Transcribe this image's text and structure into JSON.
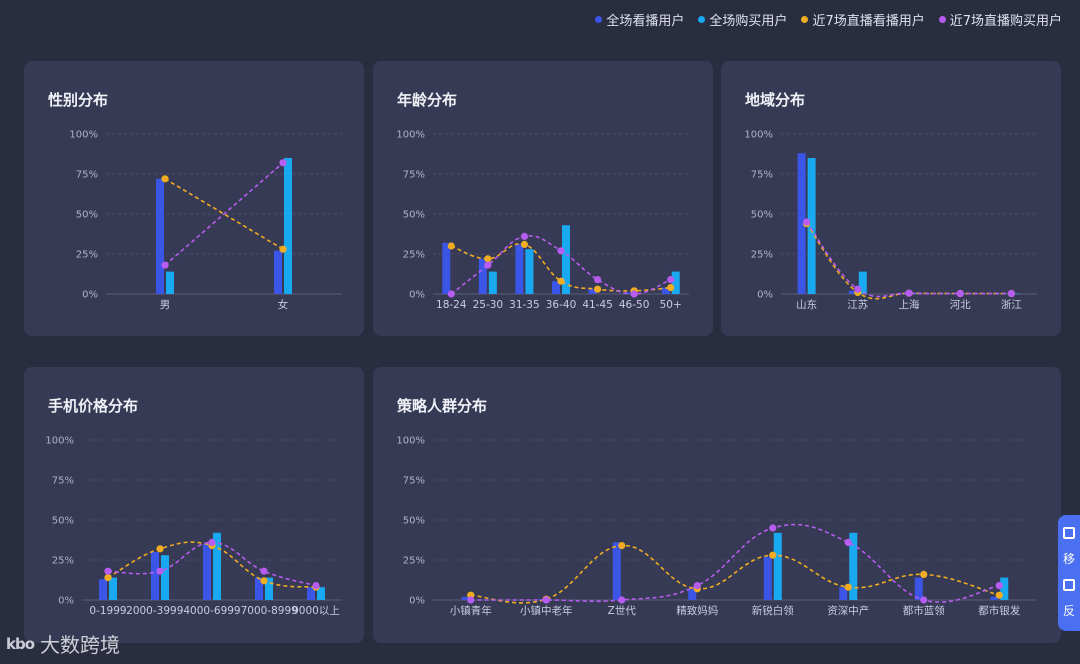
{
  "legend": [
    {
      "label": "全场看播用户",
      "color": "#3b55e6"
    },
    {
      "label": "全场购买用户",
      "color": "#19a9f0"
    },
    {
      "label": "近7场直播看播用户",
      "color": "#f0ad22"
    },
    {
      "label": "近7场直播购买用户",
      "color": "#b75cf0"
    }
  ],
  "side_widget": {
    "label1": "移",
    "label2": "反"
  },
  "watermark": {
    "logo": "kbo",
    "text": "大数跨境"
  },
  "chart_data": [
    {
      "id": "gender",
      "type": "bar",
      "title": "性别分布",
      "yticks": [
        "100%",
        "75%",
        "50%",
        "25%",
        "0%"
      ],
      "ylim": [
        0,
        100
      ],
      "categories": [
        "男",
        "女"
      ],
      "series": [
        {
          "name": "全场看播用户",
          "kind": "bar",
          "values": [
            72,
            27
          ]
        },
        {
          "name": "全场购买用户",
          "kind": "bar",
          "values": [
            14,
            85
          ]
        },
        {
          "name": "近7场直播看播用户",
          "kind": "line",
          "values": [
            72,
            28
          ]
        },
        {
          "name": "近7场直播购买用户",
          "kind": "line",
          "values": [
            18,
            82
          ]
        }
      ]
    },
    {
      "id": "age",
      "type": "bar",
      "title": "年龄分布",
      "yticks": [
        "100%",
        "75%",
        "50%",
        "25%",
        "0%"
      ],
      "ylim": [
        0,
        100
      ],
      "categories": [
        "18-24",
        "25-30",
        "31-35",
        "36-40",
        "41-45",
        "46-50",
        "50+"
      ],
      "series": [
        {
          "name": "全场看播用户",
          "kind": "bar",
          "values": [
            32,
            22,
            31,
            8,
            3,
            1,
            4
          ]
        },
        {
          "name": "全场购买用户",
          "kind": "bar",
          "values": [
            0,
            14,
            28,
            43,
            0,
            0,
            14
          ]
        },
        {
          "name": "近7场直播看播用户",
          "kind": "line",
          "values": [
            30,
            22,
            31,
            8,
            3,
            2,
            4
          ]
        },
        {
          "name": "近7场直播购买用户",
          "kind": "line",
          "values": [
            0,
            18,
            36,
            27,
            9,
            0,
            9
          ]
        }
      ]
    },
    {
      "id": "region",
      "type": "bar",
      "title": "地域分布",
      "yticks": [
        "100%",
        "75%",
        "50%",
        "25%",
        "0%"
      ],
      "ylim": [
        0,
        100
      ],
      "categories": [
        "山东",
        "江苏",
        "上海",
        "河北",
        "浙江"
      ],
      "series": [
        {
          "name": "全场看播用户",
          "kind": "bar",
          "values": [
            88,
            2,
            0.5,
            0.3,
            0.3
          ]
        },
        {
          "name": "全场购买用户",
          "kind": "bar",
          "values": [
            85,
            14,
            0.5,
            0.3,
            0.3
          ]
        },
        {
          "name": "近7场直播看播用户",
          "kind": "line",
          "values": [
            44,
            1,
            0.5,
            0.3,
            0.3
          ]
        },
        {
          "name": "近7场直播购买用户",
          "kind": "line",
          "values": [
            45,
            3,
            0.5,
            0.3,
            0.3
          ]
        }
      ]
    },
    {
      "id": "price",
      "type": "bar",
      "title": "手机价格分布",
      "yticks": [
        "100%",
        "75%",
        "50%",
        "25%",
        "0%"
      ],
      "ylim": [
        0,
        100
      ],
      "categories": [
        "0-1999",
        "2000-3999",
        "4000-6999",
        "7000-8999",
        "9000以上"
      ],
      "category_labels_text": [
        "0-1999",
        "2000-39994000-69997000-8999",
        "9000以上"
      ],
      "series": [
        {
          "name": "全场看播用户",
          "kind": "bar",
          "values": [
            13,
            30,
            35,
            14,
            8
          ]
        },
        {
          "name": "全场购买用户",
          "kind": "bar",
          "values": [
            14,
            28,
            42,
            14,
            8
          ]
        },
        {
          "name": "近7场直播看播用户",
          "kind": "line",
          "values": [
            14,
            32,
            34,
            12,
            8
          ]
        },
        {
          "name": "近7场直播购买用户",
          "kind": "line",
          "values": [
            18,
            18,
            36,
            18,
            9
          ]
        }
      ]
    },
    {
      "id": "strategy",
      "type": "bar",
      "title": "策略人群分布",
      "yticks": [
        "100%",
        "75%",
        "50%",
        "25%",
        "0%"
      ],
      "ylim": [
        0,
        100
      ],
      "categories": [
        "小镇青年",
        "小镇中老年",
        "Z世代",
        "精致妈妈",
        "新锐白领",
        "资深中产",
        "都市蓝领",
        "都市银发"
      ],
      "series": [
        {
          "name": "全场看播用户",
          "kind": "bar",
          "values": [
            2,
            0.5,
            36,
            7,
            27,
            8,
            14,
            2
          ]
        },
        {
          "name": "全场购买用户",
          "kind": "bar",
          "values": [
            0,
            0,
            0,
            0,
            42,
            42,
            0,
            14
          ]
        },
        {
          "name": "近7场直播看播用户",
          "kind": "line",
          "values": [
            3,
            0.5,
            34,
            7,
            28,
            8,
            16,
            3
          ]
        },
        {
          "name": "近7场直播购买用户",
          "kind": "line",
          "values": [
            0,
            0,
            0,
            9,
            45,
            36,
            0,
            9
          ]
        }
      ]
    }
  ]
}
